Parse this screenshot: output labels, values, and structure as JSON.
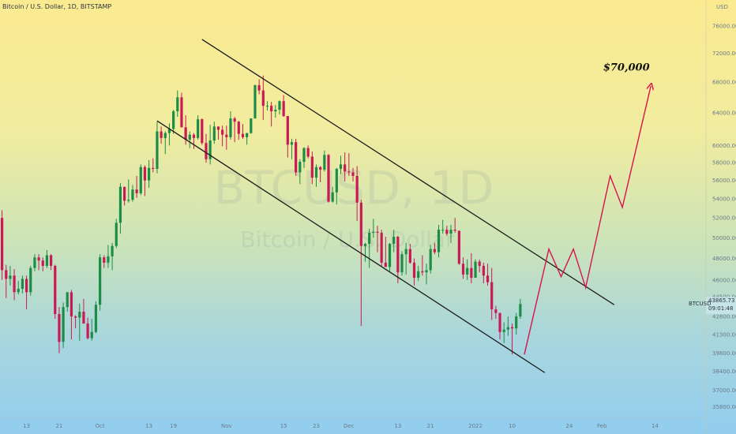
{
  "header": {
    "title": "Bitcoin / U.S. Dollar, 1D, BITSTAMP"
  },
  "corner": {
    "currency": "USD"
  },
  "watermark": {
    "symbol": "BTCUSD, 1D",
    "name": "Bitcoin / U.S. Dollar"
  },
  "price_tag": {
    "symbol": "BTCUSD",
    "price": "43865.73",
    "countdown": "09:01:48"
  },
  "colors": {
    "up": "#1c8d47",
    "down": "#c91a55",
    "projection": "#d6134d",
    "channel": "#1b1b1b"
  },
  "chart_data": {
    "type": "candlestick",
    "title": "Bitcoin / U.S. Dollar, 1D, BITSTAMP",
    "y_axis": {
      "ticks": [
        35800,
        37000,
        38400,
        39800,
        41300,
        42800,
        44500,
        46000,
        48000,
        50000,
        52000,
        54000,
        56000,
        58000,
        60000,
        64000,
        68000,
        72000,
        76000
      ],
      "tick_labels": [
        "35800.00",
        "37000.00",
        "38400.00",
        "39800.00",
        "41300.00",
        "42800.00",
        "44500.00",
        "46000.00",
        "48000.00",
        "50000.00",
        "52000.00",
        "54000.00",
        "56000.00",
        "58000.00",
        "60000.00",
        "64000.00",
        "68000.00",
        "72000.00",
        "76000.00"
      ],
      "range": [
        35000,
        80000
      ],
      "scale": "log"
    },
    "x_axis": {
      "tick_labels": [
        "13",
        "21",
        "Oct",
        "13",
        "19",
        "Nov",
        "15",
        "23",
        "Dec",
        "13",
        "21",
        "2022",
        "10",
        "24",
        "Feb",
        "14"
      ],
      "tick_dates": [
        "2021-09-13",
        "2021-09-21",
        "2021-10-01",
        "2021-10-13",
        "2021-10-19",
        "2021-11-01",
        "2021-11-15",
        "2021-11-23",
        "2021-12-01",
        "2021-12-13",
        "2021-12-21",
        "2022-01-01",
        "2022-01-10",
        "2022-01-24",
        "2022-02-01",
        "2022-02-14"
      ],
      "range": [
        "2021-09-07",
        "2022-02-27"
      ]
    },
    "candles": [
      [
        "2021-09-07",
        52000,
        52800,
        46000,
        46900
      ],
      [
        "2021-09-08",
        46900,
        47400,
        44400,
        46100
      ],
      [
        "2021-09-09",
        46100,
        47300,
        45500,
        46400
      ],
      [
        "2021-09-10",
        46400,
        47000,
        44200,
        44900
      ],
      [
        "2021-09-11",
        44900,
        45900,
        44700,
        45200
      ],
      [
        "2021-09-12",
        45200,
        46400,
        44800,
        46100
      ],
      [
        "2021-09-13",
        46100,
        46400,
        43400,
        44900
      ],
      [
        "2021-09-14",
        44900,
        47300,
        44600,
        47100
      ],
      [
        "2021-09-15",
        47100,
        48400,
        46800,
        48100
      ],
      [
        "2021-09-16",
        48100,
        48400,
        46900,
        47800
      ],
      [
        "2021-09-17",
        47800,
        48100,
        46800,
        47300
      ],
      [
        "2021-09-18",
        47300,
        48800,
        47100,
        48300
      ],
      [
        "2021-09-19",
        48300,
        48400,
        46900,
        47300
      ],
      [
        "2021-09-20",
        47300,
        47400,
        42600,
        43000
      ],
      [
        "2021-09-21",
        43000,
        43600,
        39800,
        40700
      ],
      [
        "2021-09-22",
        40700,
        44000,
        40200,
        43600
      ],
      [
        "2021-09-23",
        43600,
        44900,
        43200,
        44900
      ],
      [
        "2021-09-24",
        44900,
        45100,
        40900,
        42800
      ],
      [
        "2021-09-25",
        42800,
        42900,
        41800,
        42700
      ],
      [
        "2021-09-26",
        42700,
        43900,
        40800,
        43200
      ],
      [
        "2021-09-27",
        43200,
        44300,
        42300,
        42200
      ],
      [
        "2021-09-28",
        42200,
        42700,
        40900,
        41000
      ],
      [
        "2021-09-29",
        41000,
        42600,
        40800,
        41500
      ],
      [
        "2021-09-30",
        41500,
        44100,
        41400,
        43800
      ],
      [
        "2021-10-01",
        43800,
        48400,
        43300,
        48100
      ],
      [
        "2021-10-02",
        48100,
        48300,
        47100,
        47600
      ],
      [
        "2021-10-03",
        47600,
        49300,
        47100,
        48200
      ],
      [
        "2021-10-04",
        48200,
        49500,
        46900,
        49200
      ],
      [
        "2021-10-05",
        49200,
        51900,
        49000,
        51500
      ],
      [
        "2021-10-06",
        51500,
        55700,
        50400,
        55300
      ],
      [
        "2021-10-07",
        55300,
        55300,
        53300,
        53800
      ],
      [
        "2021-10-08",
        53800,
        56100,
        53600,
        53900
      ],
      [
        "2021-10-09",
        53900,
        55500,
        53700,
        55000
      ],
      [
        "2021-10-10",
        55000,
        56500,
        54100,
        54600
      ],
      [
        "2021-10-11",
        54600,
        57800,
        54400,
        57500
      ],
      [
        "2021-10-12",
        57500,
        57700,
        54300,
        56000
      ],
      [
        "2021-10-13",
        56000,
        58300,
        55200,
        57400
      ],
      [
        "2021-10-14",
        57400,
        58500,
        56900,
        57300
      ],
      [
        "2021-10-15",
        57300,
        62900,
        56800,
        61700
      ],
      [
        "2021-10-16",
        61700,
        62300,
        60200,
        60900
      ],
      [
        "2021-10-17",
        60900,
        61700,
        59000,
        61500
      ],
      [
        "2021-10-18",
        61500,
        62700,
        60000,
        62000
      ],
      [
        "2021-10-19",
        62000,
        64400,
        61400,
        64200
      ],
      [
        "2021-10-20",
        64200,
        66900,
        63500,
        66000
      ],
      [
        "2021-10-21",
        66000,
        66600,
        62200,
        62200
      ],
      [
        "2021-10-22",
        62200,
        63700,
        60100,
        60700
      ],
      [
        "2021-10-23",
        60700,
        61700,
        59700,
        61300
      ],
      [
        "2021-10-24",
        61300,
        61500,
        59600,
        60900
      ],
      [
        "2021-10-25",
        60900,
        63700,
        60700,
        63200
      ],
      [
        "2021-10-26",
        63200,
        63300,
        60100,
        60300
      ],
      [
        "2021-10-27",
        60300,
        61400,
        58000,
        58400
      ],
      [
        "2021-10-28",
        58400,
        62500,
        57800,
        60600
      ],
      [
        "2021-10-29",
        60600,
        62900,
        60200,
        62300
      ],
      [
        "2021-10-30",
        62300,
        62300,
        60700,
        61900
      ],
      [
        "2021-10-31",
        61900,
        62400,
        59900,
        61300
      ],
      [
        "2021-11-01",
        61300,
        62400,
        59500,
        61000
      ],
      [
        "2021-11-02",
        61000,
        64200,
        60700,
        63300
      ],
      [
        "2021-11-03",
        63300,
        63500,
        60400,
        62900
      ],
      [
        "2021-11-04",
        62900,
        63000,
        60700,
        61400
      ],
      [
        "2021-11-05",
        61400,
        62600,
        60800,
        61000
      ],
      [
        "2021-11-06",
        61000,
        61500,
        60100,
        61500
      ],
      [
        "2021-11-07",
        61500,
        63300,
        61400,
        63300
      ],
      [
        "2021-11-08",
        63300,
        67700,
        63300,
        67600
      ],
      [
        "2021-11-09",
        67600,
        68400,
        66400,
        66900
      ],
      [
        "2021-11-10",
        66900,
        68900,
        63100,
        64900
      ],
      [
        "2021-11-11",
        64900,
        65500,
        64300,
        64900
      ],
      [
        "2021-11-12",
        64900,
        65400,
        62300,
        64200
      ],
      [
        "2021-11-13",
        64200,
        65000,
        63400,
        64400
      ],
      [
        "2021-11-14",
        64400,
        65600,
        63800,
        65500
      ],
      [
        "2021-11-15",
        65500,
        66300,
        63500,
        63600
      ],
      [
        "2021-11-16",
        63600,
        63600,
        58600,
        60100
      ],
      [
        "2021-11-17",
        60100,
        60800,
        58400,
        60400
      ],
      [
        "2021-11-18",
        60400,
        60800,
        56500,
        56900
      ],
      [
        "2021-11-19",
        56900,
        58400,
        55600,
        58100
      ],
      [
        "2021-11-20",
        58100,
        59800,
        57400,
        59700
      ],
      [
        "2021-11-21",
        59700,
        60000,
        58500,
        58700
      ],
      [
        "2021-11-22",
        58700,
        59300,
        55600,
        56300
      ],
      [
        "2021-11-23",
        56300,
        57800,
        55300,
        57500
      ],
      [
        "2021-11-24",
        57500,
        57600,
        55800,
        57200
      ],
      [
        "2021-11-25",
        57200,
        59400,
        57000,
        58900
      ],
      [
        "2021-11-26",
        58900,
        59000,
        53600,
        53700
      ],
      [
        "2021-11-27",
        53700,
        55300,
        53600,
        54700
      ],
      [
        "2021-11-28",
        54700,
        57400,
        53400,
        57300
      ],
      [
        "2021-11-29",
        57300,
        58800,
        56700,
        57800
      ],
      [
        "2021-11-30",
        57800,
        59200,
        55900,
        57000
      ],
      [
        "2021-12-01",
        57000,
        59100,
        56500,
        56900
      ],
      [
        "2021-12-02",
        56900,
        57400,
        55900,
        56500
      ],
      [
        "2021-12-03",
        56500,
        57600,
        51700,
        53600
      ],
      [
        "2021-12-04",
        53600,
        53900,
        42000,
        49200
      ],
      [
        "2021-12-05",
        49200,
        49500,
        47700,
        49400
      ],
      [
        "2021-12-06",
        49400,
        50900,
        47100,
        50500
      ],
      [
        "2021-12-07",
        50500,
        51900,
        50000,
        50600
      ],
      [
        "2021-12-08",
        50600,
        51200,
        48600,
        50500
      ],
      [
        "2021-12-09",
        50500,
        50800,
        47300,
        47600
      ],
      [
        "2021-12-10",
        47600,
        50100,
        47200,
        47200
      ],
      [
        "2021-12-11",
        47200,
        49500,
        46800,
        49400
      ],
      [
        "2021-12-12",
        49400,
        50800,
        48600,
        50100
      ],
      [
        "2021-12-13",
        50100,
        50200,
        45700,
        46700
      ],
      [
        "2021-12-14",
        46700,
        48700,
        46400,
        48400
      ],
      [
        "2021-12-15",
        48400,
        49500,
        46500,
        48900
      ],
      [
        "2021-12-16",
        48900,
        49400,
        47500,
        47600
      ],
      [
        "2021-12-17",
        47600,
        48000,
        45500,
        46200
      ],
      [
        "2021-12-18",
        46200,
        47300,
        45900,
        46800
      ],
      [
        "2021-12-19",
        46800,
        48300,
        46400,
        46700
      ],
      [
        "2021-12-20",
        46700,
        47500,
        45600,
        46900
      ],
      [
        "2021-12-21",
        46900,
        49300,
        46600,
        48900
      ],
      [
        "2021-12-22",
        48900,
        49500,
        48400,
        48600
      ],
      [
        "2021-12-23",
        48600,
        51300,
        48100,
        50800
      ],
      [
        "2021-12-24",
        50800,
        51800,
        50400,
        50800
      ],
      [
        "2021-12-25",
        50800,
        51200,
        50200,
        50400
      ],
      [
        "2021-12-26",
        50400,
        51300,
        49500,
        50800
      ],
      [
        "2021-12-27",
        50800,
        52000,
        50500,
        50700
      ],
      [
        "2021-12-28",
        50700,
        50700,
        47400,
        47500
      ],
      [
        "2021-12-29",
        47500,
        48100,
        46100,
        46500
      ],
      [
        "2021-12-30",
        46500,
        47900,
        46000,
        47100
      ],
      [
        "2021-12-31",
        47100,
        48500,
        45700,
        46200
      ],
      [
        "2022-01-01",
        46200,
        47900,
        46200,
        47700
      ],
      [
        "2022-01-02",
        47700,
        47900,
        46700,
        47300
      ],
      [
        "2022-01-03",
        47300,
        47600,
        45700,
        46400
      ],
      [
        "2022-01-04",
        46400,
        47500,
        45500,
        45800
      ],
      [
        "2022-01-05",
        45800,
        47100,
        42500,
        43400
      ],
      [
        "2022-01-06",
        43400,
        43700,
        42600,
        43100
      ],
      [
        "2022-01-07",
        43100,
        43100,
        40900,
        41500
      ],
      [
        "2022-01-08",
        41500,
        42300,
        40600,
        41700
      ],
      [
        "2022-01-09",
        41700,
        42800,
        41200,
        41900
      ],
      [
        "2022-01-10",
        41900,
        42200,
        39700,
        41800
      ],
      [
        "2022-01-11",
        41800,
        43100,
        41300,
        42800
      ],
      [
        "2022-01-12",
        42800,
        44300,
        42600,
        43865.73
      ]
    ],
    "annotations": [
      {
        "text": "$70,000",
        "x": "2022-02-07",
        "y": 70000
      }
    ],
    "channel_lines": [
      {
        "from": [
          "2021-10-26",
          74000
        ],
        "to": [
          "2022-02-04",
          43800
        ]
      },
      {
        "from": [
          "2021-10-15",
          63000
        ],
        "to": [
          "2022-01-18",
          38300
        ]
      }
    ],
    "projection_path": [
      [
        "2022-01-13",
        39700
      ],
      [
        "2022-01-19",
        48900
      ],
      [
        "2022-01-22",
        46300
      ],
      [
        "2022-01-25",
        48900
      ],
      [
        "2022-01-28",
        45300
      ],
      [
        "2022-02-03",
        56500
      ],
      [
        "2022-02-06",
        53100
      ],
      [
        "2022-02-13",
        67500
      ]
    ]
  }
}
